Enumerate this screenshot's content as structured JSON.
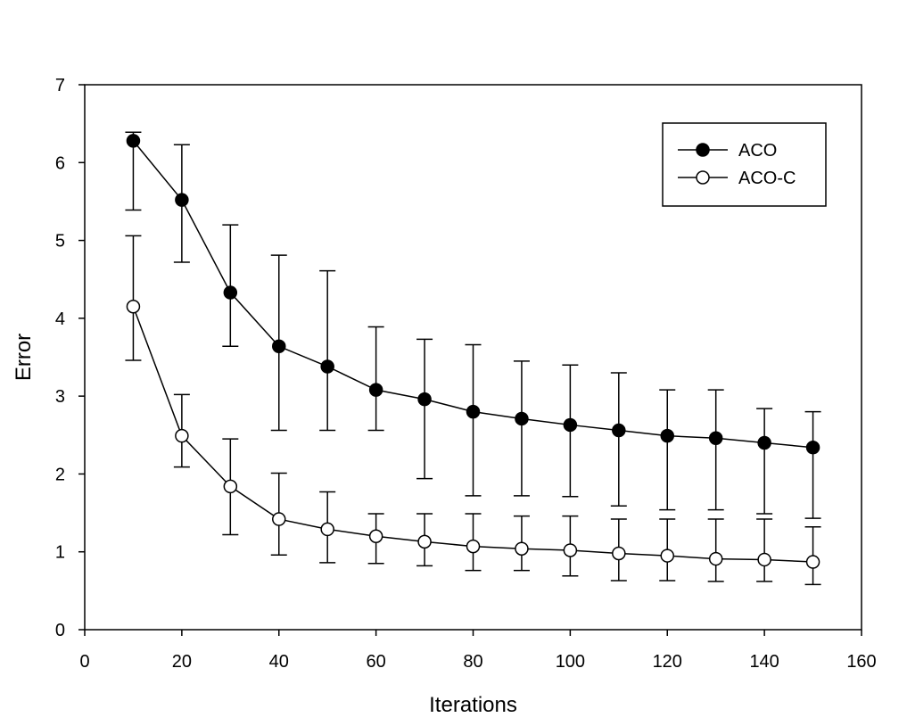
{
  "chart_data": {
    "type": "line",
    "title": "",
    "xlabel": "Iterations",
    "ylabel": "Error",
    "xlim": [
      0,
      160
    ],
    "ylim": [
      0,
      7
    ],
    "xticks": [
      0,
      20,
      40,
      60,
      80,
      100,
      120,
      140,
      160
    ],
    "yticks": [
      0,
      1,
      2,
      3,
      4,
      5,
      6,
      7
    ],
    "grid": false,
    "legend_position": "top-right",
    "x": [
      10,
      20,
      30,
      40,
      50,
      60,
      70,
      80,
      90,
      100,
      110,
      120,
      130,
      140,
      150
    ],
    "series": [
      {
        "name": "ACO",
        "marker": "filled-circle",
        "color": "#000000",
        "values": [
          6.28,
          5.52,
          4.33,
          3.64,
          3.38,
          3.08,
          2.96,
          2.8,
          2.71,
          2.63,
          2.56,
          2.49,
          2.46,
          2.4,
          2.34
        ],
        "err_low": [
          5.39,
          4.72,
          3.64,
          2.56,
          2.56,
          2.56,
          1.94,
          1.72,
          1.72,
          1.71,
          1.59,
          1.54,
          1.54,
          1.49,
          1.43
        ],
        "err_high": [
          6.39,
          6.23,
          5.2,
          4.81,
          4.61,
          3.89,
          3.73,
          3.66,
          3.45,
          3.4,
          3.3,
          3.08,
          3.08,
          2.84,
          2.8
        ]
      },
      {
        "name": "ACO-C",
        "marker": "open-circle",
        "color": "#000000",
        "values": [
          4.15,
          2.49,
          1.84,
          1.42,
          1.29,
          1.2,
          1.13,
          1.07,
          1.04,
          1.02,
          0.98,
          0.95,
          0.91,
          0.9,
          0.87
        ],
        "err_low": [
          3.46,
          2.09,
          1.22,
          0.96,
          0.86,
          0.85,
          0.82,
          0.76,
          0.76,
          0.69,
          0.63,
          0.63,
          0.62,
          0.62,
          0.58
        ],
        "err_high": [
          5.06,
          3.02,
          2.45,
          2.01,
          1.77,
          1.49,
          1.49,
          1.49,
          1.46,
          1.46,
          1.42,
          1.42,
          1.42,
          1.42,
          1.32
        ]
      }
    ]
  }
}
